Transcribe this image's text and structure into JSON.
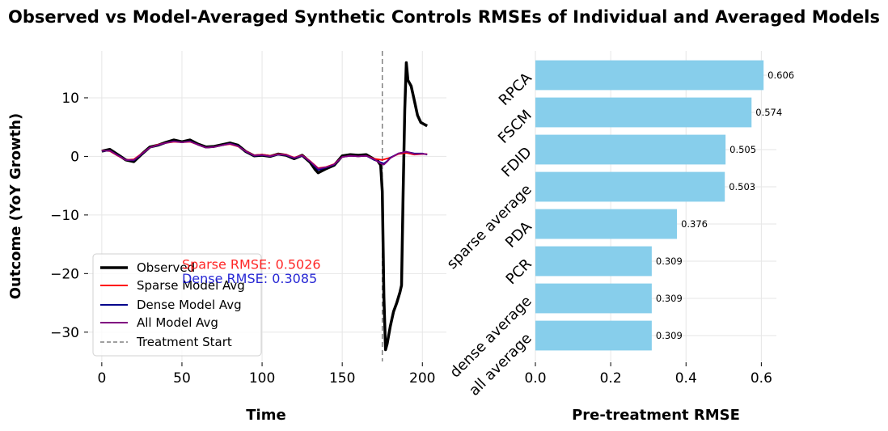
{
  "chart_data": [
    {
      "type": "line",
      "title": "Observed vs Model-Averaged Synthetic Controls",
      "xlabel": "Time",
      "ylabel": "Outcome (YoY Growth)",
      "xlim": [
        -8,
        215
      ],
      "ylim": [
        -35,
        18
      ],
      "x_ticks": [
        0,
        50,
        100,
        150,
        200
      ],
      "y_ticks": [
        10,
        0,
        -10,
        -20,
        -30
      ],
      "grid": true,
      "legend_position": "bottom-left",
      "treatment_start": 175,
      "annotations": [
        {
          "id": "sparse",
          "text": "Sparse RMSE: 0.5026",
          "color": "#ff0000",
          "x": 50,
          "y": -19.2
        },
        {
          "id": "dense",
          "text": "Dense RMSE: 0.3085",
          "color": "#0000cc",
          "x": 50,
          "y": -21.6
        }
      ],
      "legend": [
        {
          "label": "Observed",
          "color": "#000000",
          "style": "solid-thick"
        },
        {
          "label": "Sparse Model Avg",
          "color": "#ff0000",
          "style": "solid"
        },
        {
          "label": "Dense Model Avg",
          "color": "#00008b",
          "style": "solid"
        },
        {
          "label": "All Model Avg",
          "color": "#800080",
          "style": "solid"
        },
        {
          "label": "Treatment Start",
          "color": "#808080",
          "style": "dashed"
        }
      ],
      "series": [
        {
          "name": "Observed",
          "color": "#000000",
          "points": [
            [
              0,
              0.9
            ],
            [
              5,
              1.2
            ],
            [
              10,
              0.3
            ],
            [
              15,
              -0.6
            ],
            [
              20,
              -0.9
            ],
            [
              25,
              0.4
            ],
            [
              30,
              1.6
            ],
            [
              35,
              1.9
            ],
            [
              40,
              2.4
            ],
            [
              45,
              2.8
            ],
            [
              50,
              2.5
            ],
            [
              55,
              2.8
            ],
            [
              60,
              2.1
            ],
            [
              65,
              1.6
            ],
            [
              70,
              1.7
            ],
            [
              75,
              2.0
            ],
            [
              80,
              2.3
            ],
            [
              85,
              1.9
            ],
            [
              90,
              0.8
            ],
            [
              95,
              0.1
            ],
            [
              100,
              0.2
            ],
            [
              105,
              0.0
            ],
            [
              110,
              0.4
            ],
            [
              115,
              0.2
            ],
            [
              120,
              -0.4
            ],
            [
              125,
              0.2
            ],
            [
              130,
              -1.0
            ],
            [
              133,
              -2.2
            ],
            [
              135,
              -2.8
            ],
            [
              140,
              -2.1
            ],
            [
              145,
              -1.5
            ],
            [
              150,
              0.1
            ],
            [
              155,
              0.3
            ],
            [
              160,
              0.2
            ],
            [
              165,
              0.3
            ],
            [
              170,
              -0.5
            ],
            [
              172,
              -0.7
            ],
            [
              174,
              -1.5
            ],
            [
              175,
              -6.0
            ],
            [
              176,
              -24.0
            ],
            [
              177,
              -33.0
            ],
            [
              178,
              -32.0
            ],
            [
              180,
              -29.0
            ],
            [
              182,
              -26.5
            ],
            [
              184,
              -25.0
            ],
            [
              186,
              -23.2
            ],
            [
              187,
              -22.0
            ],
            [
              188,
              -6.0
            ],
            [
              189,
              8.0
            ],
            [
              190,
              16.0
            ],
            [
              191,
              13.0
            ],
            [
              192,
              12.5
            ],
            [
              193,
              12.0
            ],
            [
              195,
              9.5
            ],
            [
              197,
              7.0
            ],
            [
              199,
              5.8
            ],
            [
              201,
              5.5
            ],
            [
              203,
              5.2
            ]
          ]
        },
        {
          "name": "Sparse Model Avg",
          "color": "#ff0000",
          "points": [
            [
              0,
              1.0
            ],
            [
              5,
              0.9
            ],
            [
              10,
              0.1
            ],
            [
              15,
              -0.6
            ],
            [
              20,
              -0.5
            ],
            [
              25,
              0.5
            ],
            [
              30,
              1.5
            ],
            [
              35,
              2.0
            ],
            [
              40,
              2.3
            ],
            [
              45,
              2.5
            ],
            [
              50,
              2.4
            ],
            [
              55,
              2.5
            ],
            [
              60,
              2.0
            ],
            [
              65,
              1.5
            ],
            [
              70,
              1.6
            ],
            [
              75,
              1.9
            ],
            [
              80,
              2.1
            ],
            [
              85,
              1.7
            ],
            [
              90,
              0.9
            ],
            [
              95,
              0.2
            ],
            [
              100,
              0.3
            ],
            [
              105,
              0.1
            ],
            [
              110,
              0.4
            ],
            [
              115,
              0.3
            ],
            [
              120,
              -0.2
            ],
            [
              125,
              0.2
            ],
            [
              130,
              -0.8
            ],
            [
              135,
              -2.0
            ],
            [
              140,
              -1.8
            ],
            [
              145,
              -1.3
            ],
            [
              150,
              -0.1
            ],
            [
              155,
              0.1
            ],
            [
              160,
              0.0
            ],
            [
              165,
              0.1
            ],
            [
              170,
              -0.4
            ],
            [
              175,
              -0.6
            ],
            [
              180,
              -0.2
            ],
            [
              185,
              0.4
            ],
            [
              190,
              0.6
            ],
            [
              195,
              0.3
            ],
            [
              200,
              0.4
            ],
            [
              203,
              0.4
            ]
          ]
        },
        {
          "name": "Dense Model Avg",
          "color": "#00008b",
          "points": [
            [
              0,
              0.9
            ],
            [
              5,
              1.0
            ],
            [
              10,
              0.2
            ],
            [
              15,
              -0.6
            ],
            [
              20,
              -0.7
            ],
            [
              25,
              0.4
            ],
            [
              30,
              1.5
            ],
            [
              35,
              1.9
            ],
            [
              40,
              2.3
            ],
            [
              45,
              2.6
            ],
            [
              50,
              2.4
            ],
            [
              55,
              2.6
            ],
            [
              60,
              2.0
            ],
            [
              65,
              1.5
            ],
            [
              70,
              1.6
            ],
            [
              75,
              1.9
            ],
            [
              80,
              2.2
            ],
            [
              85,
              1.8
            ],
            [
              90,
              0.8
            ],
            [
              95,
              0.1
            ],
            [
              100,
              0.2
            ],
            [
              105,
              0.0
            ],
            [
              110,
              0.3
            ],
            [
              115,
              0.2
            ],
            [
              120,
              -0.3
            ],
            [
              125,
              0.1
            ],
            [
              130,
              -0.9
            ],
            [
              135,
              -2.3
            ],
            [
              140,
              -1.9
            ],
            [
              145,
              -1.4
            ],
            [
              150,
              -0.1
            ],
            [
              155,
              0.1
            ],
            [
              160,
              0.0
            ],
            [
              165,
              0.1
            ],
            [
              170,
              -0.6
            ],
            [
              174,
              -1.0
            ],
            [
              176,
              -1.2
            ],
            [
              178,
              -0.8
            ],
            [
              180,
              -0.2
            ],
            [
              185,
              0.5
            ],
            [
              190,
              0.8
            ],
            [
              195,
              0.5
            ],
            [
              200,
              0.5
            ],
            [
              203,
              0.3
            ]
          ]
        },
        {
          "name": "All Model Avg",
          "color": "#800080",
          "points": [
            [
              0,
              0.95
            ],
            [
              5,
              1.0
            ],
            [
              10,
              0.15
            ],
            [
              15,
              -0.6
            ],
            [
              20,
              -0.6
            ],
            [
              25,
              0.45
            ],
            [
              30,
              1.5
            ],
            [
              35,
              1.95
            ],
            [
              40,
              2.3
            ],
            [
              45,
              2.55
            ],
            [
              50,
              2.4
            ],
            [
              55,
              2.55
            ],
            [
              60,
              2.0
            ],
            [
              65,
              1.5
            ],
            [
              70,
              1.6
            ],
            [
              75,
              1.9
            ],
            [
              80,
              2.15
            ],
            [
              85,
              1.75
            ],
            [
              90,
              0.85
            ],
            [
              95,
              0.15
            ],
            [
              100,
              0.25
            ],
            [
              105,
              0.05
            ],
            [
              110,
              0.35
            ],
            [
              115,
              0.25
            ],
            [
              120,
              -0.25
            ],
            [
              125,
              0.15
            ],
            [
              130,
              -0.85
            ],
            [
              135,
              -2.1
            ],
            [
              140,
              -1.85
            ],
            [
              145,
              -1.35
            ],
            [
              150,
              -0.1
            ],
            [
              155,
              0.1
            ],
            [
              160,
              0.0
            ],
            [
              165,
              0.1
            ],
            [
              170,
              -0.5
            ],
            [
              174,
              -1.2
            ],
            [
              176,
              -1.4
            ],
            [
              178,
              -0.9
            ],
            [
              180,
              -0.3
            ],
            [
              185,
              0.5
            ],
            [
              190,
              0.8
            ],
            [
              195,
              0.4
            ],
            [
              200,
              0.45
            ],
            [
              203,
              0.35
            ]
          ]
        }
      ]
    },
    {
      "type": "bar",
      "orientation": "horizontal",
      "title": "RMSEs of Individual and Averaged Models",
      "xlabel": "Pre-treatment RMSE",
      "ylabel": "",
      "xlim": [
        0,
        0.64
      ],
      "x_ticks": [
        0.0,
        0.2,
        0.4,
        0.6
      ],
      "x_tick_labels": [
        "0.0",
        "0.2",
        "0.4",
        "0.6"
      ],
      "grid": true,
      "bar_color": "#87ceeb",
      "categories": [
        "RPCA",
        "FSCM",
        "FDID",
        "sparse average",
        "PDA",
        "PCR",
        "dense average",
        "all average"
      ],
      "values": [
        0.606,
        0.574,
        0.505,
        0.503,
        0.376,
        0.309,
        0.309,
        0.309
      ],
      "value_labels": [
        "0.606",
        "0.574",
        "0.505",
        "0.503",
        "0.376",
        "0.309",
        "0.309",
        "0.309"
      ]
    }
  ]
}
